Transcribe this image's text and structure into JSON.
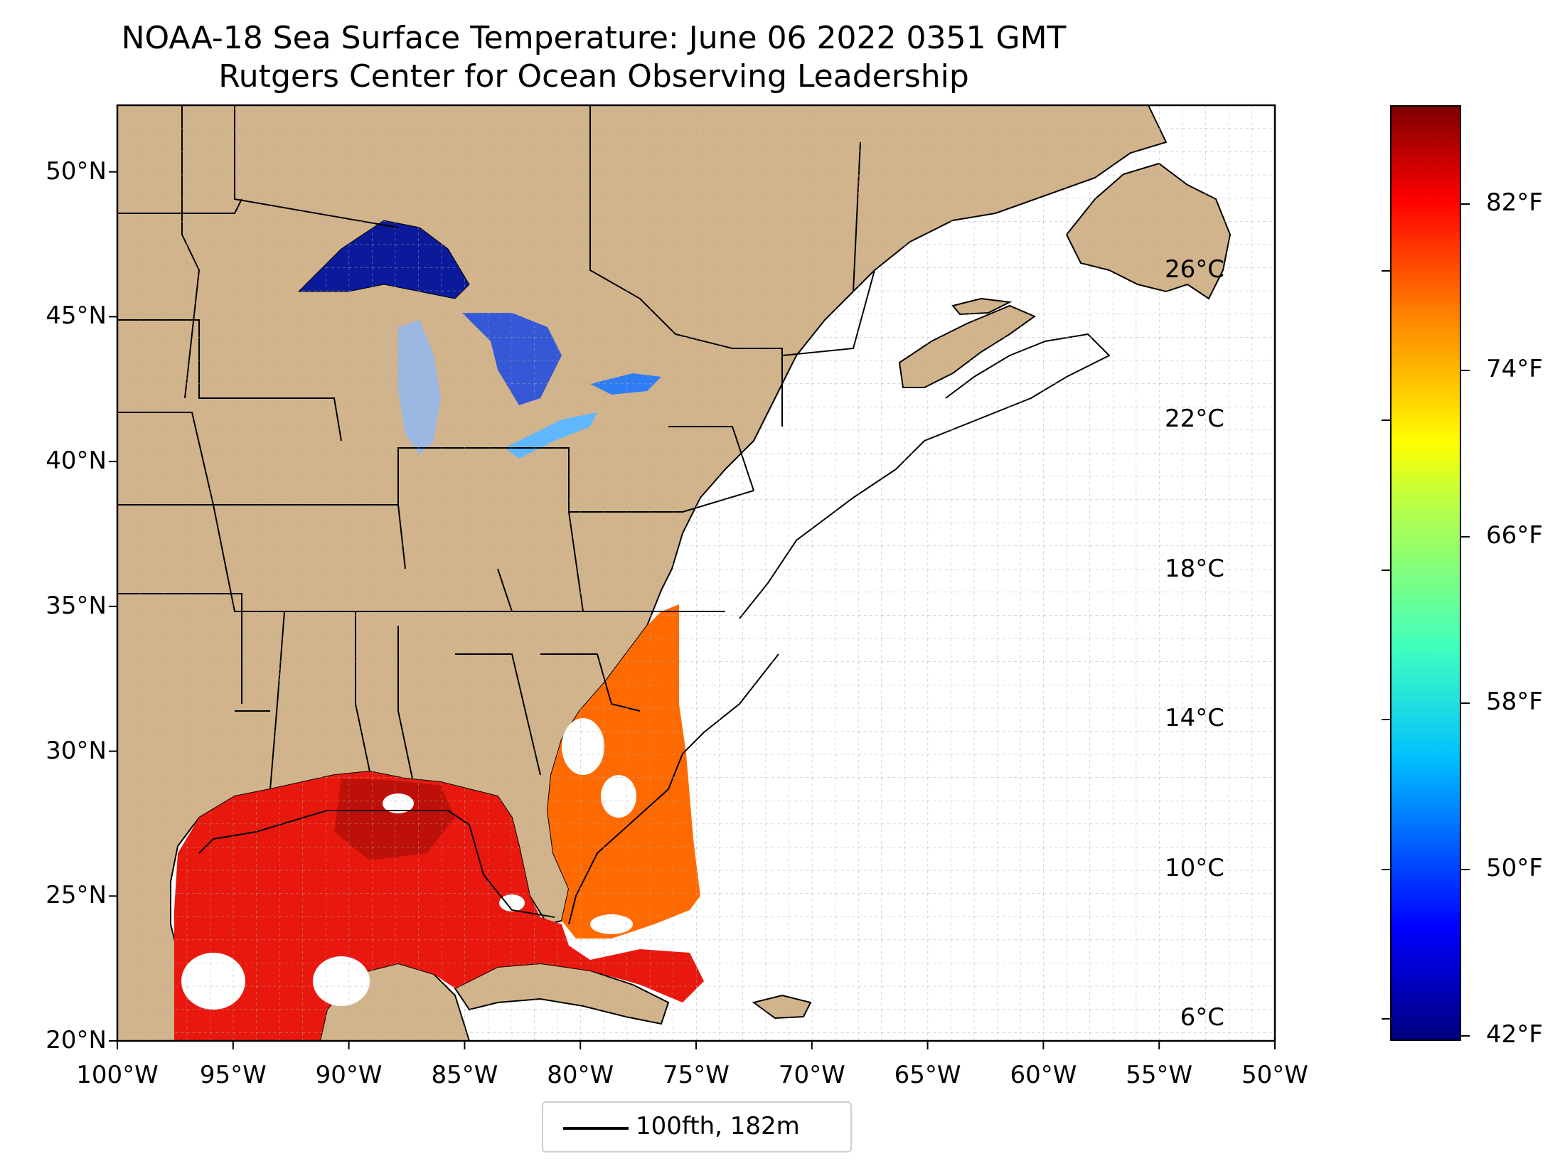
{
  "title": {
    "line1": "NOAA-18 Sea Surface Temperature: June 06 2022 0351 GMT",
    "line2": "Rutgers Center for Ocean Observing Leadership"
  },
  "map": {
    "lon_range": [
      -100,
      -50
    ],
    "lat_range": [
      20,
      52.3
    ],
    "x_ticks": [
      "100°W",
      "95°W",
      "90°W",
      "85°W",
      "80°W",
      "75°W",
      "70°W",
      "65°W",
      "60°W",
      "55°W",
      "50°W"
    ],
    "y_ticks": [
      "20°N",
      "25°N",
      "30°N",
      "35°N",
      "40°N",
      "45°N",
      "50°N"
    ],
    "land_color": "#d2b48c",
    "ocean_color": "#ffffff",
    "gridlines": true
  },
  "legend": {
    "label": "100fth, 182m"
  },
  "colorbar": {
    "colormap": "jet",
    "range_c": [
      5.4,
      30.4
    ],
    "celsius_ticks": [
      "6°C",
      "10°C",
      "14°C",
      "18°C",
      "22°C",
      "26°C"
    ],
    "celsius_values": [
      6,
      10,
      14,
      18,
      22,
      26
    ],
    "fahrenheit_ticks": [
      "42°F",
      "50°F",
      "58°F",
      "66°F",
      "74°F",
      "82°F"
    ],
    "fahrenheit_values": [
      42,
      50,
      58,
      66,
      74,
      82
    ]
  }
}
